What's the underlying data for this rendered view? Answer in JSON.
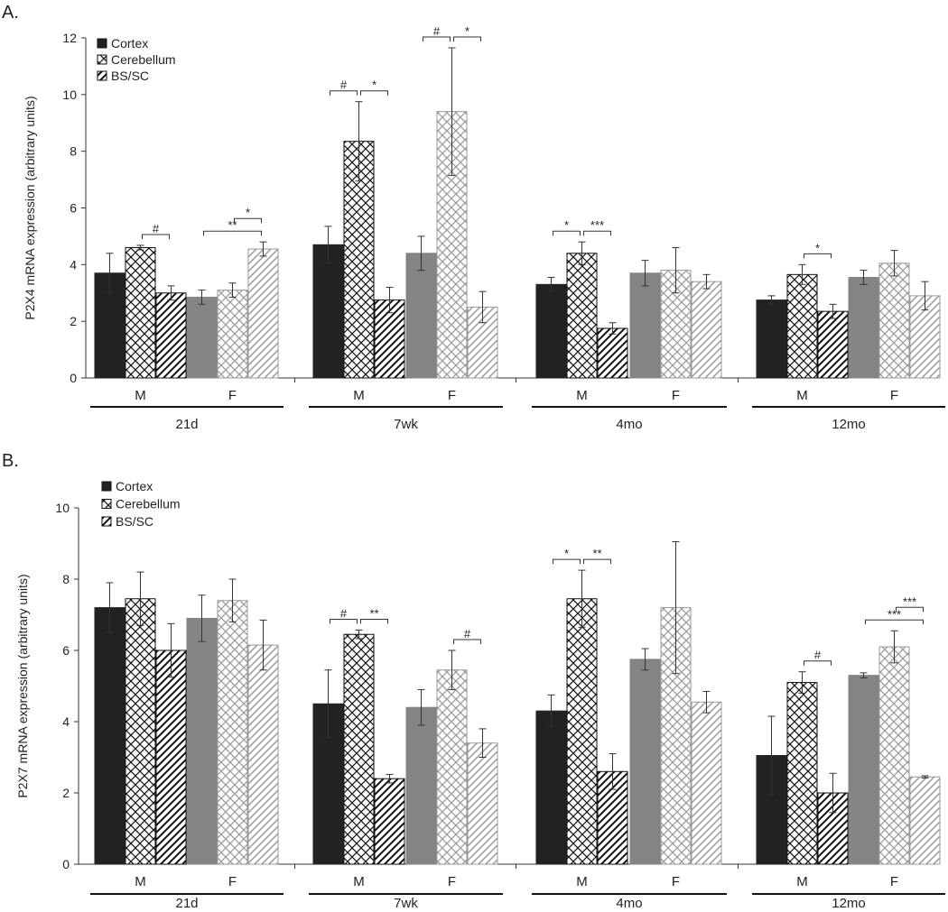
{
  "chart_data": [
    {
      "type": "bar",
      "panel_label": "A.",
      "ylabel": "P2X4 mRNA expression (arbitrary units)",
      "ylim": [
        0,
        12
      ],
      "yticks": [
        0,
        2,
        4,
        6,
        8,
        10,
        12
      ],
      "legend": [
        "Cortex",
        "Cerebellum",
        "BS/SC"
      ],
      "legend_position": "top-left",
      "age_groups": [
        "21d",
        "7wk",
        "4mo",
        "12mo"
      ],
      "sexes": [
        "M",
        "F"
      ],
      "series": [
        {
          "name": "Cortex",
          "values": [
            3.7,
            2.85,
            4.7,
            4.4,
            3.3,
            3.7,
            2.75,
            3.55
          ],
          "errors": [
            0.7,
            0.25,
            0.65,
            0.6,
            0.25,
            0.45,
            0.15,
            0.25
          ]
        },
        {
          "name": "Cerebellum",
          "values": [
            4.6,
            3.1,
            8.35,
            9.4,
            4.4,
            3.8,
            3.65,
            4.05
          ],
          "errors": [
            0.08,
            0.25,
            1.4,
            2.25,
            0.4,
            0.8,
            0.35,
            0.45
          ]
        },
        {
          "name": "BS/SC",
          "values": [
            3.0,
            4.55,
            2.75,
            2.5,
            1.75,
            3.4,
            2.35,
            2.9
          ],
          "errors": [
            0.25,
            0.25,
            0.45,
            0.55,
            0.2,
            0.25,
            0.25,
            0.5
          ]
        }
      ],
      "significance": [
        {
          "cluster": 0,
          "from": 1,
          "to": 2,
          "label": "#"
        },
        {
          "cluster": 1,
          "from": 0,
          "to": 2,
          "label": "**"
        },
        {
          "cluster": 1,
          "from": 1,
          "to": 2,
          "label": "*"
        },
        {
          "cluster": 2,
          "from": 0,
          "to": 1,
          "label": "#"
        },
        {
          "cluster": 2,
          "from": 1,
          "to": 2,
          "label": "*"
        },
        {
          "cluster": 3,
          "from": 0,
          "to": 1,
          "label": "#"
        },
        {
          "cluster": 3,
          "from": 1,
          "to": 2,
          "label": "*"
        },
        {
          "cluster": 4,
          "from": 0,
          "to": 1,
          "label": "*"
        },
        {
          "cluster": 4,
          "from": 1,
          "to": 2,
          "label": "***"
        },
        {
          "cluster": 6,
          "from": 1,
          "to": 2,
          "label": "*"
        }
      ]
    },
    {
      "type": "bar",
      "panel_label": "B.",
      "ylabel": "P2X7 mRNA expression (arbitrary units)",
      "ylim": [
        0,
        10
      ],
      "yticks": [
        0,
        2,
        4,
        6,
        8,
        10
      ],
      "legend": [
        "Cortex",
        "Cerebellum",
        "BS/SC"
      ],
      "legend_position": "top-left",
      "age_groups": [
        "21d",
        "7wk",
        "4mo",
        "12mo"
      ],
      "sexes": [
        "M",
        "F"
      ],
      "series": [
        {
          "name": "Cortex",
          "values": [
            7.2,
            6.9,
            4.5,
            4.4,
            4.3,
            5.75,
            3.05,
            5.3
          ],
          "errors": [
            0.7,
            0.65,
            0.95,
            0.5,
            0.45,
            0.3,
            1.1,
            0.07
          ]
        },
        {
          "name": "Cerebellum",
          "values": [
            7.45,
            7.4,
            6.45,
            5.45,
            7.45,
            7.2,
            5.1,
            6.1
          ],
          "errors": [
            0.75,
            0.6,
            0.12,
            0.55,
            0.8,
            1.85,
            0.3,
            0.45
          ]
        },
        {
          "name": "BS/SC",
          "values": [
            6.0,
            6.15,
            2.4,
            3.4,
            2.6,
            4.55,
            2.0,
            2.45
          ],
          "errors": [
            0.75,
            0.7,
            0.12,
            0.4,
            0.5,
            0.3,
            0.55,
            0.03
          ]
        }
      ],
      "significance": [
        {
          "cluster": 2,
          "from": 0,
          "to": 1,
          "label": "#"
        },
        {
          "cluster": 2,
          "from": 1,
          "to": 2,
          "label": "**"
        },
        {
          "cluster": 3,
          "from": 1,
          "to": 2,
          "label": "#"
        },
        {
          "cluster": 4,
          "from": 0,
          "to": 1,
          "label": "*"
        },
        {
          "cluster": 4,
          "from": 1,
          "to": 2,
          "label": "**"
        },
        {
          "cluster": 6,
          "from": 1,
          "to": 2,
          "label": "#"
        },
        {
          "cluster": 7,
          "from": 0,
          "to": 2,
          "label": "***"
        },
        {
          "cluster": 7,
          "from": 1,
          "to": 2,
          "label": "***"
        }
      ]
    }
  ]
}
